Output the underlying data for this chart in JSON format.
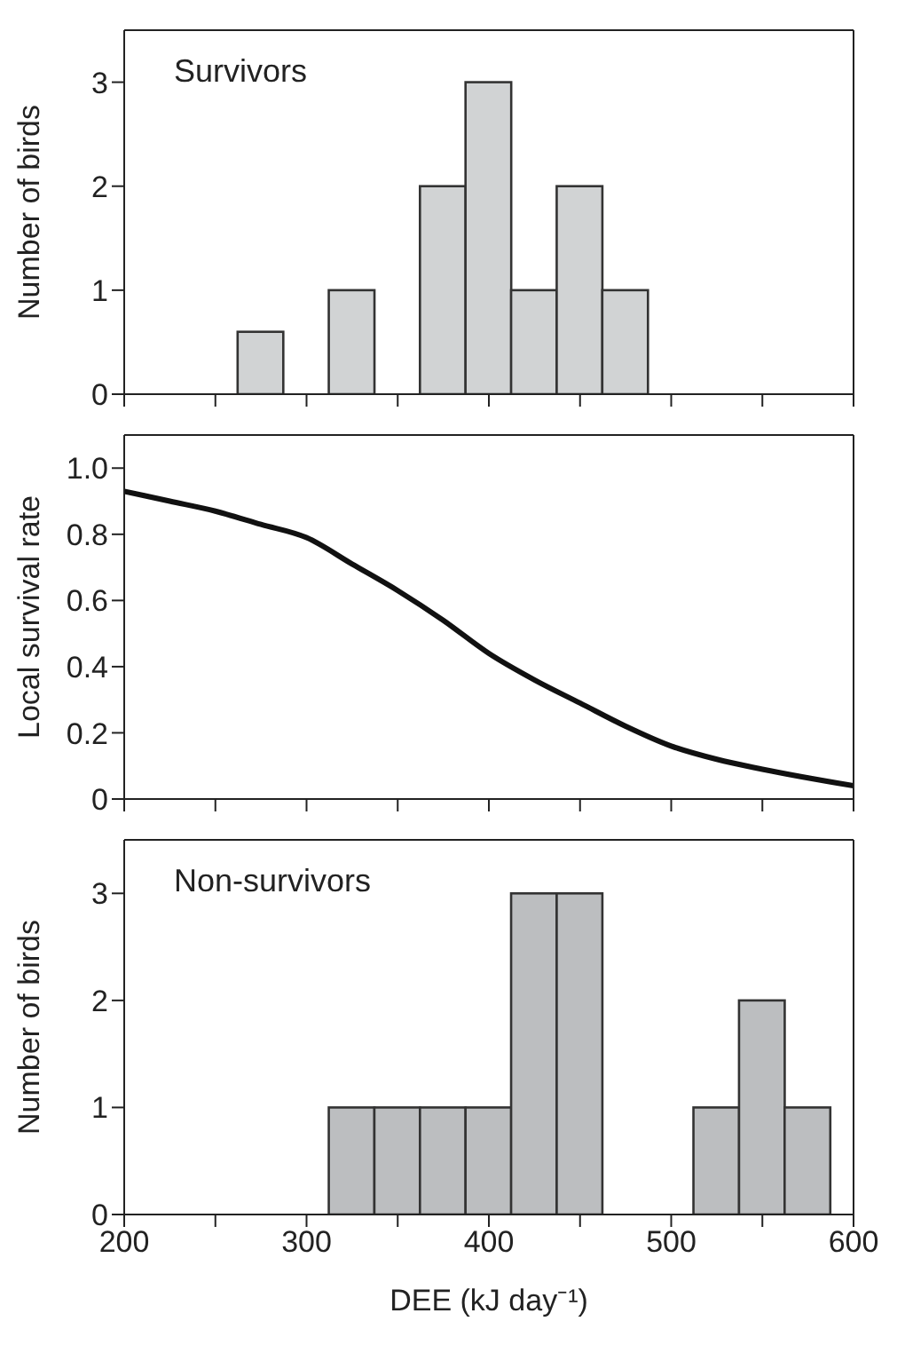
{
  "chart_data": [
    {
      "type": "histogram",
      "ylabel": "Number of birds",
      "annotations": [
        "Survivors"
      ],
      "bins": [
        262.5,
        287.5,
        312.5,
        337.5,
        362.5,
        387.5,
        412.5,
        437.5,
        462.5,
        487.5
      ],
      "values": [
        0.6,
        0,
        1,
        0,
        2,
        3,
        1,
        2,
        1
      ],
      "color": "#d1d3d4",
      "xlim": [
        200,
        600
      ],
      "xticks": [
        200,
        {
          "value": 250,
          "label": null
        },
        300,
        {
          "value": 350,
          "label": null
        },
        400,
        {
          "value": 450,
          "label": null
        },
        500,
        {
          "value": 550,
          "label": null
        },
        600
      ],
      "ylim": [
        0,
        3.5
      ],
      "yticks": [
        0,
        1,
        2,
        3
      ],
      "tick_labels": "y",
      "grid": false,
      "legend": false
    },
    {
      "type": "line",
      "ylabel": "Local survival rate",
      "x": [
        200,
        225,
        250,
        275,
        300,
        325,
        350,
        375,
        400,
        425,
        450,
        475,
        500,
        525,
        550,
        600
      ],
      "values": [
        0.93,
        0.9,
        0.87,
        0.83,
        0.79,
        0.71,
        0.63,
        0.54,
        0.44,
        0.36,
        0.29,
        0.22,
        0.16,
        0.12,
        0.09,
        0.04
      ],
      "color": "#111111",
      "xlim": [
        200,
        600
      ],
      "xticks": [
        200,
        {
          "value": 250,
          "label": null
        },
        300,
        {
          "value": 350,
          "label": null
        },
        400,
        {
          "value": 450,
          "label": null
        },
        500,
        {
          "value": 550,
          "label": null
        },
        600
      ],
      "ylim": [
        0,
        1.1
      ],
      "yticks": [
        0,
        0.2,
        0.4,
        0.6,
        0.8,
        {
          "value": 1,
          "label": "1.0"
        }
      ],
      "tick_labels": "y",
      "grid": false,
      "legend": false,
      "marker": "none",
      "line_style": "solid"
    },
    {
      "type": "histogram",
      "xlabel": "DEE (kJ day⁻¹)",
      "ylabel": "Number of birds",
      "annotations": [
        "Non-survivors"
      ],
      "bins": [
        312.5,
        337.5,
        362.5,
        387.5,
        412.5,
        437.5,
        462.5,
        487.5,
        512.5,
        537.5,
        562.5,
        587.5
      ],
      "values": [
        1,
        1,
        1,
        1,
        3,
        3,
        0,
        0,
        1,
        2,
        1
      ],
      "color": "#bcbec0",
      "xlim": [
        200,
        600
      ],
      "xticks": [
        200,
        {
          "value": 250,
          "label": null
        },
        300,
        {
          "value": 350,
          "label": null
        },
        400,
        {
          "value": 450,
          "label": null
        },
        500,
        {
          "value": 550,
          "label": null
        },
        600
      ],
      "ylim": [
        0,
        3.5
      ],
      "yticks": [
        0,
        1,
        2,
        3
      ],
      "grid": false,
      "legend": false
    }
  ]
}
